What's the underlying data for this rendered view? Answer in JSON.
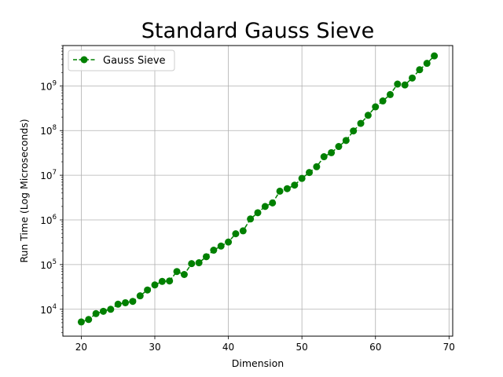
{
  "chart_data": {
    "type": "line",
    "title": "Standard Gauss Sieve",
    "xlabel": "Dimension",
    "ylabel": "Run Time (Log Microseconds)",
    "yscale": "log",
    "xlim": [
      17.5,
      70.5
    ],
    "ylim": [
      2500,
      8000000000
    ],
    "xticks": [
      20,
      30,
      40,
      50,
      60,
      70
    ],
    "xtick_labels": [
      "20",
      "30",
      "40",
      "50",
      "60",
      "70"
    ],
    "yticks": [
      10000,
      100000,
      1000000,
      10000000,
      100000000,
      1000000000
    ],
    "ytick_labels": [
      {
        "base": "10",
        "exp": "4"
      },
      {
        "base": "10",
        "exp": "5"
      },
      {
        "base": "10",
        "exp": "6"
      },
      {
        "base": "10",
        "exp": "7"
      },
      {
        "base": "10",
        "exp": "8"
      },
      {
        "base": "10",
        "exp": "9"
      }
    ],
    "grid": true,
    "legend_position": "top-left",
    "series": [
      {
        "name": "Gauss Sieve",
        "color": "#008000",
        "marker": "circle",
        "linestyle": "dashed",
        "x": [
          20,
          21,
          22,
          23,
          24,
          25,
          26,
          27,
          28,
          29,
          30,
          31,
          32,
          33,
          34,
          35,
          36,
          37,
          38,
          39,
          40,
          41,
          42,
          43,
          44,
          45,
          46,
          47,
          48,
          49,
          50,
          51,
          52,
          53,
          54,
          55,
          56,
          57,
          58,
          59,
          60,
          61,
          62,
          63,
          64,
          65,
          66,
          67,
          68
        ],
        "y": [
          5200,
          5900,
          8000,
          9000,
          10000,
          13000,
          14000,
          15000,
          20000,
          27000,
          35000,
          42000,
          43000,
          70000,
          60000,
          105000,
          110000,
          150000,
          210000,
          260000,
          320000,
          490000,
          570000,
          1050000,
          1450000,
          2000000,
          2400000,
          4400000,
          5000000,
          6000000,
          8500000,
          11500000,
          15500000,
          26000000,
          32000000,
          44000000,
          60000000,
          98000000,
          145000000,
          220000000,
          340000000,
          460000000,
          640000000,
          1100000000,
          1050000000,
          1500000000,
          2300000000,
          3200000000,
          4700000000
        ]
      }
    ]
  }
}
